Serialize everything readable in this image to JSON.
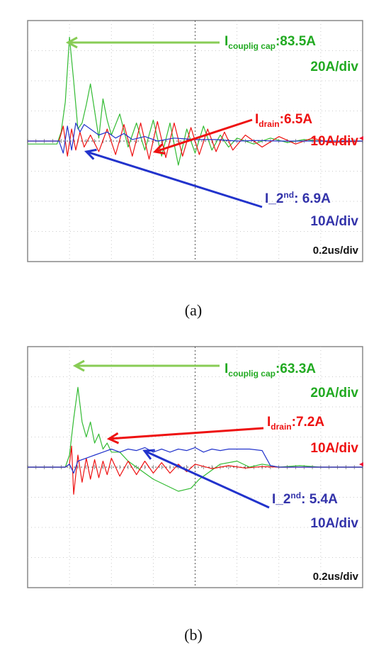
{
  "captions": [
    "(a)",
    "(b)"
  ],
  "colors": {
    "coupling": "#33bb33",
    "coupling_label": "#22aa22",
    "drain": "#ee1111",
    "second": "#2233cc",
    "second_label": "#3333aa",
    "grid_major": "#555555",
    "grid_minor": "#bbbbbb",
    "frame": "#888888",
    "marker": "#ee1133"
  },
  "chart_data": [
    {
      "type": "line",
      "label_id": "a",
      "x_unit": "div",
      "y_unit": "div",
      "xlim": [
        0,
        8
      ],
      "ylim": [
        -4,
        4
      ],
      "grid": true,
      "timebase": "0.2us/div",
      "annotations": [
        {
          "key": "coupling",
          "name": "I",
          "sub": "couplig cap",
          "value": ":83.5A",
          "scale": "20A/div"
        },
        {
          "key": "drain",
          "name": "I",
          "sub": "drain",
          "value": ":6.5A",
          "scale": "10A/div"
        },
        {
          "key": "second",
          "name": "I_2",
          "sup": "nd",
          "value": ": 6.9A",
          "scale": "10A/div"
        }
      ],
      "series": [
        {
          "key": "coupling",
          "x": [
            0,
            0.7,
            0.8,
            0.9,
            1.0,
            1.1,
            1.2,
            1.3,
            1.4,
            1.5,
            1.6,
            1.7,
            1.8,
            1.9,
            2.0,
            2.2,
            2.4,
            2.6,
            2.8,
            3.0,
            3.2,
            3.4,
            3.6,
            3.8,
            4.0,
            4.2,
            4.4,
            4.6,
            4.8,
            5.0,
            5.4,
            5.8,
            6.2,
            6.6,
            7.0,
            7.4,
            8
          ],
          "y": [
            -0.1,
            -0.1,
            0.3,
            1.3,
            3.45,
            2.0,
            0.4,
            0.6,
            1.2,
            1.9,
            1.0,
            0.1,
            1.4,
            0.7,
            0.2,
            0.9,
            -0.2,
            0.6,
            -0.3,
            0.7,
            -0.5,
            0.6,
            -0.8,
            0.4,
            -0.4,
            0.5,
            -0.3,
            0.2,
            -0.2,
            0.1,
            -0.1,
            0.1,
            -0.05,
            0.05,
            0,
            0,
            0
          ]
        },
        {
          "key": "drain",
          "x": [
            0,
            0.75,
            0.85,
            0.95,
            1.05,
            1.15,
            1.25,
            1.35,
            1.5,
            1.7,
            1.9,
            2.1,
            2.3,
            2.5,
            2.7,
            2.9,
            3.1,
            3.3,
            3.5,
            3.7,
            3.9,
            4.1,
            4.3,
            4.5,
            4.7,
            4.9,
            5.2,
            5.6,
            6.0,
            6.4,
            6.8,
            7.2,
            8
          ],
          "y": [
            0,
            0,
            0.5,
            -0.5,
            0.4,
            -0.3,
            0.3,
            -0.2,
            0.2,
            -0.35,
            0.4,
            -0.45,
            0.55,
            -0.5,
            0.6,
            -0.6,
            0.65,
            -0.55,
            0.6,
            -0.5,
            0.45,
            -0.45,
            0.4,
            -0.35,
            0.3,
            -0.3,
            0.2,
            -0.2,
            0.15,
            -0.1,
            0.1,
            -0.05,
            0
          ]
        },
        {
          "key": "second",
          "x": [
            0,
            0.75,
            0.85,
            0.95,
            1.05,
            1.15,
            1.25,
            1.35,
            1.5,
            1.7,
            1.9,
            2.1,
            2.3,
            2.5,
            2.8,
            3.1,
            3.5,
            4.0,
            4.5,
            5.0,
            5.5,
            6.0,
            6.5,
            7.0,
            8
          ],
          "y": [
            0,
            0,
            -0.4,
            0.5,
            -0.3,
            0.6,
            0.3,
            0.55,
            0.4,
            0.2,
            0.3,
            0.1,
            0.25,
            0.05,
            0.15,
            0.0,
            0.1,
            0.05,
            0.05,
            0.0,
            0.02,
            0.0,
            0.0,
            0.0,
            0.0
          ]
        }
      ]
    },
    {
      "type": "line",
      "label_id": "b",
      "x_unit": "div",
      "y_unit": "div",
      "xlim": [
        0,
        8
      ],
      "ylim": [
        -4,
        4
      ],
      "grid": true,
      "timebase": "0.2us/div",
      "annotations": [
        {
          "key": "coupling",
          "name": "I",
          "sub": "couplig cap",
          "value": ":63.3A",
          "scale": "20A/div"
        },
        {
          "key": "drain",
          "name": "I",
          "sub": "drain",
          "value": ":7.2A",
          "scale": "10A/div"
        },
        {
          "key": "second",
          "name": "I_2",
          "sup": "nd",
          "value": ": 5.4A",
          "scale": "10A/div"
        }
      ],
      "series": [
        {
          "key": "coupling",
          "x": [
            0,
            0.9,
            1.0,
            1.1,
            1.2,
            1.3,
            1.4,
            1.5,
            1.6,
            1.7,
            1.8,
            1.9,
            2.0,
            2.2,
            2.4,
            2.6,
            2.8,
            3.0,
            3.3,
            3.6,
            3.9,
            4.1,
            4.3,
            4.6,
            5.0,
            5.3,
            5.6,
            6.0,
            6.5,
            7.0,
            7.5,
            8
          ],
          "y": [
            0,
            0,
            0.4,
            1.6,
            2.65,
            1.5,
            1.0,
            1.5,
            0.8,
            1.1,
            0.6,
            0.8,
            0.5,
            0.5,
            0.2,
            0.0,
            -0.2,
            -0.4,
            -0.6,
            -0.8,
            -0.7,
            -0.4,
            -0.2,
            0.1,
            0.2,
            0.0,
            0.1,
            0.0,
            0.05,
            0,
            0,
            0
          ]
        },
        {
          "key": "drain",
          "x": [
            0,
            0.9,
            1.0,
            1.05,
            1.1,
            1.2,
            1.3,
            1.4,
            1.5,
            1.6,
            1.7,
            1.8,
            1.9,
            2.0,
            2.2,
            2.4,
            2.6,
            2.8,
            3.0,
            3.2,
            3.4,
            3.6,
            3.8,
            4.0,
            4.4,
            4.8,
            5.2,
            5.6,
            6.0,
            8
          ],
          "y": [
            0,
            0,
            0.1,
            0.7,
            -0.9,
            0.4,
            -0.5,
            0.3,
            -0.4,
            0.25,
            -0.35,
            0.2,
            -0.25,
            0.3,
            -0.3,
            0.2,
            -0.25,
            0.2,
            -0.2,
            0.15,
            -0.2,
            0.1,
            -0.15,
            0.1,
            -0.05,
            0.05,
            -0.03,
            0.02,
            0,
            0
          ]
        },
        {
          "key": "second",
          "x": [
            0,
            0.9,
            1.0,
            1.1,
            1.2,
            1.4,
            1.6,
            1.8,
            2.0,
            2.2,
            2.4,
            2.6,
            2.8,
            3.0,
            3.2,
            3.4,
            3.6,
            3.8,
            4.0,
            4.2,
            4.4,
            4.6,
            4.8,
            5.0,
            5.3,
            5.6,
            5.7,
            5.8,
            6.0,
            6.5,
            7.0,
            8
          ],
          "y": [
            0,
            0,
            0.1,
            -0.2,
            0.2,
            0.3,
            0.4,
            0.5,
            0.6,
            0.5,
            0.6,
            0.55,
            0.65,
            0.5,
            0.6,
            0.5,
            0.6,
            0.55,
            0.65,
            0.5,
            0.6,
            0.55,
            0.6,
            0.6,
            0.6,
            0.55,
            0.3,
            0.05,
            0.0,
            0.0,
            0.0,
            0.0
          ]
        }
      ]
    }
  ]
}
